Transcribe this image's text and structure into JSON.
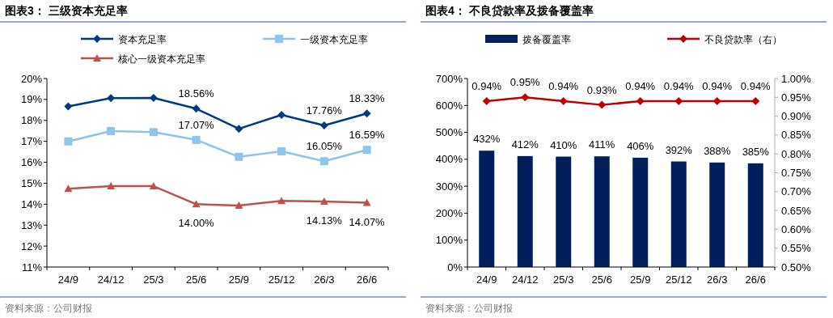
{
  "chart_data": [
    {
      "type": "line",
      "title": "图表3：  三级资本充足率",
      "categories": [
        "24/9",
        "24/12",
        "25/3",
        "25/6",
        "25/9",
        "25/12",
        "26/3",
        "26/6"
      ],
      "series": [
        {
          "name": "资本充足率",
          "color": "#003a80",
          "marker": "diamond",
          "values": [
            18.67,
            19.06,
            19.07,
            18.56,
            17.6,
            18.26,
            17.76,
            18.33
          ],
          "value_labels": [
            null,
            null,
            null,
            "18.56%",
            null,
            null,
            "17.76%",
            "18.33%"
          ]
        },
        {
          "name": "一级资本充足率",
          "color": "#8ec5ea",
          "marker": "square",
          "values": [
            17.0,
            17.49,
            17.44,
            17.07,
            16.26,
            16.52,
            16.05,
            16.59
          ],
          "value_labels": [
            null,
            null,
            null,
            "17.07%",
            null,
            null,
            "16.05%",
            "16.59%"
          ]
        },
        {
          "name": "核心一级资本充足率",
          "color": "#c0504d",
          "marker": "triangle",
          "values": [
            14.74,
            14.86,
            14.86,
            14.0,
            13.94,
            14.16,
            14.13,
            14.07
          ],
          "value_labels": [
            null,
            null,
            null,
            "14.00%",
            null,
            null,
            "14.13%",
            "14.07%"
          ]
        }
      ],
      "ylim": [
        11,
        20
      ],
      "yticks": [
        {
          "value": 11,
          "label": "11%"
        },
        {
          "value": 12,
          "label": "12%"
        },
        {
          "value": 13,
          "label": "13%"
        },
        {
          "value": 14,
          "label": "14%"
        },
        {
          "value": 15,
          "label": "15%"
        },
        {
          "value": 16,
          "label": "16%"
        },
        {
          "value": 17,
          "label": "17%"
        },
        {
          "value": 18,
          "label": "18%"
        },
        {
          "value": 19,
          "label": "19%"
        },
        {
          "value": 20,
          "label": "20%"
        }
      ],
      "legend": "top",
      "grid": false,
      "annotations": [
        "资料来源：公司财报"
      ]
    },
    {
      "type": "bar",
      "title": "图表4：  不良贷款率及拨备覆盖率",
      "categories": [
        "24/9",
        "24/12",
        "25/3",
        "25/6",
        "25/9",
        "25/12",
        "26/3",
        "26/6"
      ],
      "series": [
        {
          "name": "拨备覆盖率",
          "color": "#001f5c",
          "values": [
            432,
            412,
            410,
            411,
            406,
            392,
            388,
            385
          ],
          "value_labels": [
            "432%",
            "412%",
            "410%",
            "411%",
            "406%",
            "392%",
            "388%",
            "385%"
          ]
        },
        {
          "name": "不良贷款率（右）",
          "type": "line",
          "axis": "y2",
          "color": "#c00000",
          "marker": "diamond",
          "values": [
            0.94,
            0.95,
            0.94,
            0.93,
            0.94,
            0.94,
            0.94,
            0.94
          ],
          "value_labels": [
            "0.94%",
            "0.95%",
            "0.94%",
            "0.93%",
            "0.94%",
            "0.94%",
            "0.94%",
            "0.94%"
          ]
        }
      ],
      "ylim": [
        0,
        700
      ],
      "yticks": [
        {
          "value": 0,
          "label": "0%"
        },
        {
          "value": 100,
          "label": "100%"
        },
        {
          "value": 200,
          "label": "200%"
        },
        {
          "value": 300,
          "label": "300%"
        },
        {
          "value": 400,
          "label": "400%"
        },
        {
          "value": 500,
          "label": "500%"
        },
        {
          "value": 600,
          "label": "600%"
        },
        {
          "value": 700,
          "label": "700%"
        }
      ],
      "y2lim": [
        0.5,
        1.0
      ],
      "y2ticks": [
        {
          "value": 0.5,
          "label": "0.50%"
        },
        {
          "value": 0.55,
          "label": "0.55%"
        },
        {
          "value": 0.6,
          "label": "0.60%"
        },
        {
          "value": 0.65,
          "label": "0.65%"
        },
        {
          "value": 0.7,
          "label": "0.70%"
        },
        {
          "value": 0.75,
          "label": "0.75%"
        },
        {
          "value": 0.8,
          "label": "0.80%"
        },
        {
          "value": 0.85,
          "label": "0.85%"
        },
        {
          "value": 0.9,
          "label": "0.90%"
        },
        {
          "value": 0.95,
          "label": "0.95%"
        },
        {
          "value": 1.0,
          "label": "1.00%"
        }
      ],
      "legend": "top",
      "grid": false,
      "annotations": [
        "资料来源：公司财报"
      ]
    }
  ]
}
